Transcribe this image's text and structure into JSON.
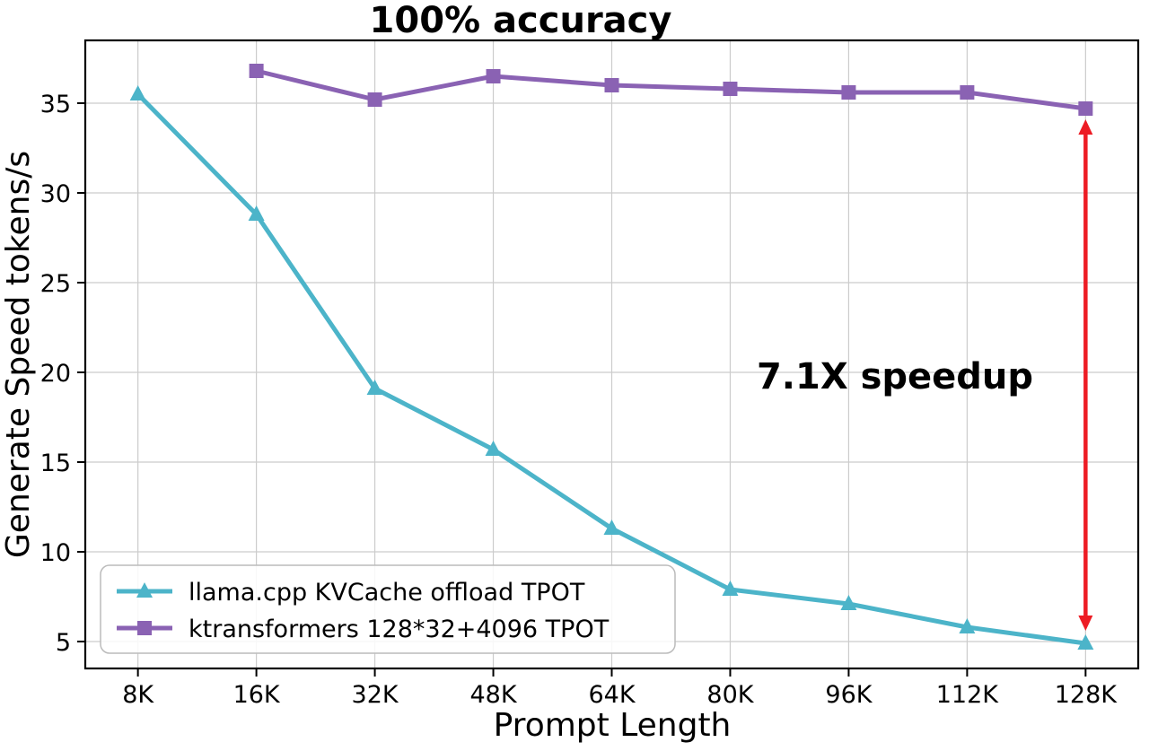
{
  "chart_data": {
    "type": "line",
    "title": "100% accuracy",
    "title_color": "#ed1c24",
    "xlabel": "Prompt Length",
    "ylabel": "Generate Speed tokens/s",
    "categories": [
      "8K",
      "16K",
      "32K",
      "48K",
      "64K",
      "80K",
      "96K",
      "112K",
      "128K"
    ],
    "series": [
      {
        "name": "llama.cpp KVCache offload TPOT",
        "color": "#4cb4c9",
        "marker": "triangle",
        "values": [
          35.5,
          28.8,
          19.1,
          15.7,
          11.3,
          7.9,
          7.1,
          5.8,
          4.9
        ]
      },
      {
        "name": "ktransformers 128*32+4096 TPOT",
        "color": "#8a62b3",
        "marker": "square",
        "values": [
          null,
          36.8,
          35.2,
          36.5,
          36.0,
          35.8,
          35.6,
          35.6,
          34.7
        ]
      }
    ],
    "yticks": [
      5,
      10,
      15,
      20,
      25,
      30,
      35
    ],
    "ylim": [
      3.5,
      38.5
    ],
    "grid": true,
    "grid_color": "#cccccc",
    "legend_position": "lower-left",
    "annotations": {
      "speedup": {
        "text": "7.1X speedup",
        "color": "#ed1c24"
      },
      "arrow": {
        "category": "128K",
        "y_from": 34.7,
        "y_to": 5.0,
        "color": "#ed1c24"
      }
    }
  }
}
